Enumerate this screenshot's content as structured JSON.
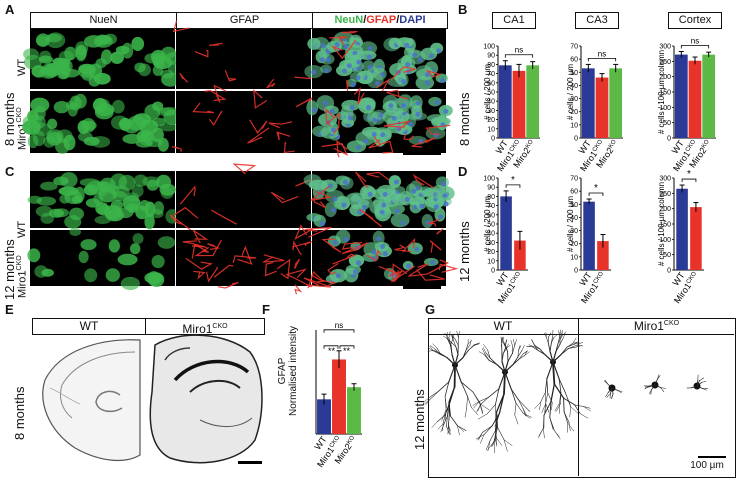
{
  "panels": {
    "A": "A",
    "B": "B",
    "C": "C",
    "D": "D",
    "E": "E",
    "F": "F",
    "G": "G"
  },
  "micro_headers": {
    "neun": "NueN",
    "gfap": "GFAP",
    "merge_neun": "NeuN",
    "merge_slash1": "/",
    "merge_gfap": "GFAP",
    "merge_slash2": "/",
    "merge_dapi": "DAPI"
  },
  "ages": {
    "eight": "8 months",
    "twelve": "12 months"
  },
  "genotypes": {
    "wt": "WT",
    "miro1": "Miro1",
    "cko": "CKO",
    "miro2": "Miro2",
    "ko": "KO"
  },
  "colors": {
    "wt": "#2b3a97",
    "miro1": "#e8332a",
    "miro2": "#5cb946",
    "neun": "#3bb54a",
    "gfap": "#e8332a",
    "dapi": "#2b3a97"
  },
  "regions": {
    "ca1": "CA1",
    "ca3": "CA3",
    "cortex": "Cortex"
  },
  "ylabels": {
    "per200": "# cells / 200 µm",
    "per100": "# cells / 100 µm column",
    "gfap1": "GFAP",
    "gfap2": "Normalised intensity"
  },
  "sig": {
    "ns": "ns",
    "star": "*",
    "dstar": "**"
  },
  "scalebar": "100 µm",
  "chart_data": [
    {
      "type": "bar",
      "panel": "B",
      "title": "CA1",
      "categories": [
        "WT",
        "Miro1CKO",
        "Miro2KO"
      ],
      "values": [
        79,
        73,
        79
      ],
      "errors": [
        5,
        7,
        4
      ],
      "ylim": [
        0,
        100
      ],
      "yticks": [
        0,
        10,
        20,
        30,
        40,
        50,
        60,
        70,
        80,
        90,
        100
      ],
      "ylabel": "# cells / 200 µm",
      "annotation": "ns"
    },
    {
      "type": "bar",
      "panel": "B",
      "title": "CA3",
      "categories": [
        "WT",
        "Miro1CKO",
        "Miro2KO"
      ],
      "values": [
        53,
        46,
        53
      ],
      "errors": [
        3,
        3,
        3
      ],
      "ylim": [
        0,
        70
      ],
      "yticks": [
        0,
        10,
        20,
        30,
        40,
        50,
        60,
        70
      ],
      "ylabel": "# cells / 200 µm",
      "annotation": "ns"
    },
    {
      "type": "bar",
      "panel": "B",
      "title": "Cortex",
      "categories": [
        "WT",
        "Miro1CKO",
        "Miro2KO"
      ],
      "values": [
        272,
        252,
        272
      ],
      "errors": [
        10,
        12,
        8
      ],
      "ylim": [
        0,
        300
      ],
      "yticks": [
        0,
        50,
        100,
        150,
        200,
        250,
        300
      ],
      "ylabel": "# cells / 100 µm column",
      "annotation": "ns"
    },
    {
      "type": "bar",
      "panel": "D",
      "categories": [
        "WT",
        "Miro1CKO"
      ],
      "values": [
        80,
        32
      ],
      "errors": [
        6,
        10
      ],
      "ylim": [
        0,
        100
      ],
      "yticks": [
        0,
        10,
        20,
        30,
        40,
        50,
        60,
        70,
        80,
        90,
        100
      ],
      "ylabel": "# cells / 200 µm",
      "annotation": "*"
    },
    {
      "type": "bar",
      "panel": "D",
      "categories": [
        "WT",
        "Miro1CKO"
      ],
      "values": [
        52,
        22
      ],
      "errors": [
        2,
        5
      ],
      "ylim": [
        0,
        70
      ],
      "yticks": [
        0,
        10,
        20,
        30,
        40,
        50,
        60,
        70
      ],
      "ylabel": "# cells / 200 µm",
      "annotation": "*"
    },
    {
      "type": "bar",
      "panel": "D",
      "categories": [
        "WT",
        "Miro1CKO"
      ],
      "values": [
        265,
        205
      ],
      "errors": [
        12,
        15
      ],
      "ylim": [
        0,
        300
      ],
      "yticks": [
        0,
        50,
        100,
        150,
        200,
        250,
        300
      ],
      "ylabel": "# cells / 100 µm column",
      "annotation": "*"
    },
    {
      "type": "bar",
      "panel": "F",
      "categories": [
        "WT",
        "Miro1CKO",
        "Miro2KO"
      ],
      "values": [
        1.0,
        2.15,
        1.35
      ],
      "errors": [
        0.15,
        0.25,
        0.1
      ],
      "ylim": [
        0,
        3
      ],
      "yticks": [],
      "ylabel": "GFAP Normalised intensity",
      "annotations": [
        "ns",
        "**",
        "**"
      ]
    }
  ]
}
